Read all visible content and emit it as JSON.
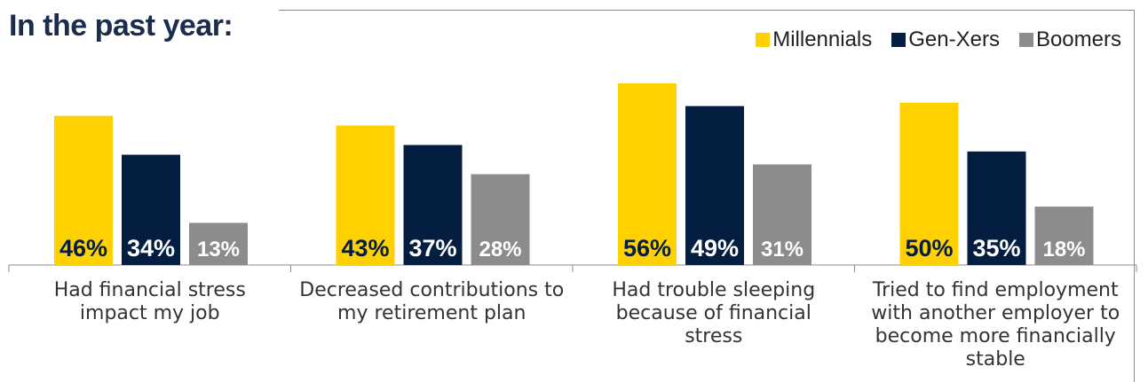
{
  "chart_data": {
    "type": "bar",
    "title": "In the past year:",
    "categories": [
      "Had financial stress impact my job",
      "Decreased contributions to my retirement plan",
      "Had trouble sleeping because of financial stress",
      "Tried to find employment with another employer to become more financially stable"
    ],
    "category_lines": [
      [
        "Had financial stress",
        "impact my job"
      ],
      [
        "Decreased contributions to",
        "my retirement plan"
      ],
      [
        "Had trouble sleeping",
        "because of financial",
        "stress"
      ],
      [
        "Tried to find employment",
        "with another employer to",
        "become more financially",
        "stable"
      ]
    ],
    "series": [
      {
        "name": "Millennials",
        "values": [
          46,
          43,
          56,
          50
        ],
        "labels": [
          "46%",
          "43%",
          "56%",
          "50%"
        ],
        "color": "#FFD100"
      },
      {
        "name": "Gen-Xers",
        "values": [
          34,
          37,
          49,
          35
        ],
        "labels": [
          "34%",
          "37%",
          "49%",
          "35%"
        ],
        "color": "#041E42"
      },
      {
        "name": "Boomers",
        "values": [
          13,
          28,
          31,
          18
        ],
        "labels": [
          "13%",
          "28%",
          "31%",
          "18%"
        ],
        "color": "#8C8C8C"
      }
    ],
    "ylim": [
      0,
      60
    ],
    "legend_position": "top-right",
    "grid": false,
    "label_colors": {
      "Millennials": "#041E42",
      "Gen-Xers": "#FFFFFF",
      "Boomers": "#FFFFFF"
    }
  }
}
